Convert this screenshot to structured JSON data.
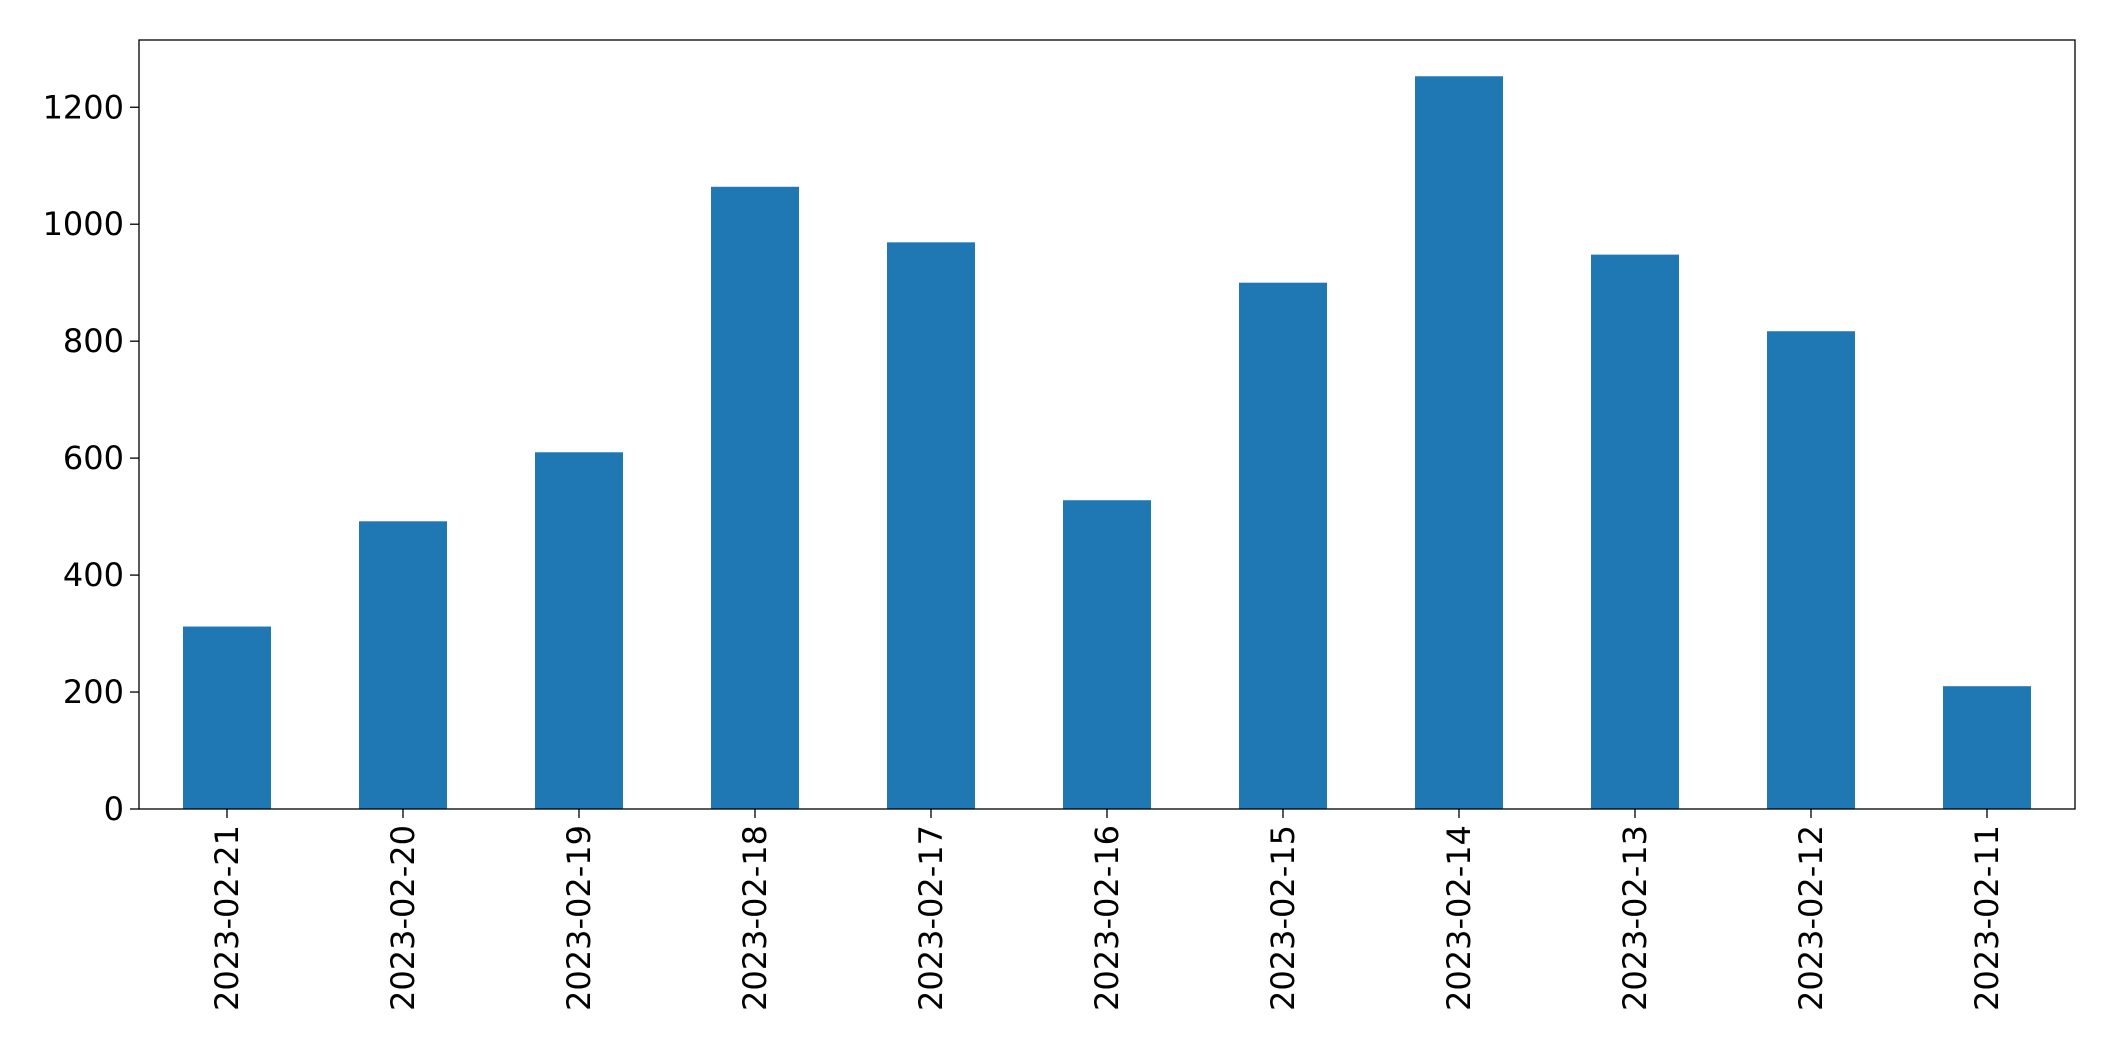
{
  "chart_data": {
    "type": "bar",
    "categories": [
      "2023-02-21",
      "2023-02-20",
      "2023-02-19",
      "2023-02-18",
      "2023-02-17",
      "2023-02-16",
      "2023-02-15",
      "2023-02-14",
      "2023-02-13",
      "2023-02-12",
      "2023-02-11"
    ],
    "values": [
      312,
      492,
      610,
      1064,
      969,
      528,
      900,
      1253,
      948,
      817,
      210
    ],
    "color": "#1f77b4",
    "ylim": [
      0,
      1315
    ],
    "yticks": [
      0,
      200,
      400,
      600,
      800,
      1000,
      1200
    ],
    "grid": false
  }
}
